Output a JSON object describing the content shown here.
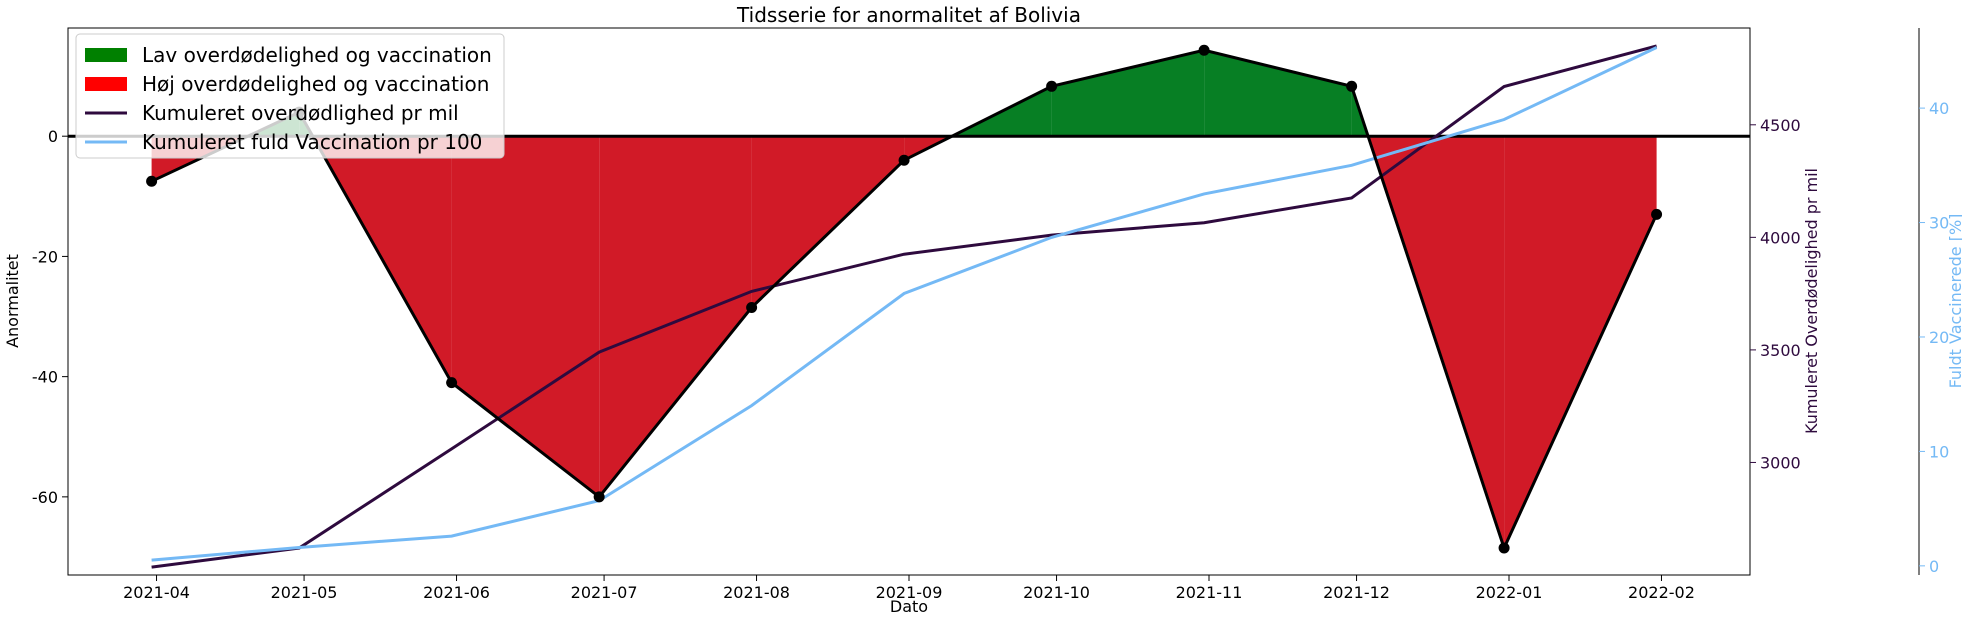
{
  "chart_data": {
    "type": "line",
    "title": "Tidsserie for anormalitet af Bolivia",
    "xlabel": "Dato",
    "ylabel": "Anormalitet",
    "y2label": "Kumuleret Overdødelighed pr mil",
    "y3label": "Fuldt Vaccinerede [%]",
    "x_ticks": [
      "2021-04",
      "2021-05",
      "2021-06",
      "2021-07",
      "2021-08",
      "2021-09",
      "2021-10",
      "2021-11",
      "2021-12",
      "2022-01",
      "2022-02"
    ],
    "ylim": [
      -73,
      18
    ],
    "y_ticks": [
      -60,
      -40,
      -20,
      0
    ],
    "y2lim": [
      2500,
      4930
    ],
    "y2_ticks": [
      3000,
      3500,
      4000,
      4500
    ],
    "y3lim": [
      -0.8,
      47
    ],
    "y3_ticks": [
      0,
      10,
      20,
      30,
      40
    ],
    "colors": {
      "low_fill": "#077f24",
      "high_fill": "#d11a27",
      "anomaly_line": "#000000",
      "excess_line": "#2e0a3e",
      "vaccination_line": "#74b9f5",
      "legend_low": "#008000",
      "legend_high": "#ff0000"
    },
    "legend": {
      "placement": "top-left",
      "items": [
        {
          "label": "Lav overdødelighed og vaccination",
          "kind": "patch",
          "color_key": "legend_low"
        },
        {
          "label": "Høj overdødelighed og vaccination",
          "kind": "patch",
          "color_key": "legend_high"
        },
        {
          "label": "Kumuleret overdødlighed pr mil",
          "kind": "line",
          "color_key": "excess_line"
        },
        {
          "label": "Kumuleret fuld Vaccination pr 100",
          "kind": "line",
          "color_key": "vaccination_line"
        }
      ]
    },
    "series": [
      {
        "name": "Anormalitet",
        "axis": "left",
        "values": [
          {
            "x": "2021-03-31",
            "y": -7.5
          },
          {
            "x": "2021-04-30",
            "y": 4.0
          },
          {
            "x": "2021-05-31",
            "y": -41.0
          },
          {
            "x": "2021-06-30",
            "y": -60.0
          },
          {
            "x": "2021-07-31",
            "y": -28.5
          },
          {
            "x": "2021-08-31",
            "y": -4.0
          },
          {
            "x": "2021-09-30",
            "y": 8.3
          },
          {
            "x": "2021-10-31",
            "y": 14.3
          },
          {
            "x": "2021-11-30",
            "y": 8.3
          },
          {
            "x": "2021-12-31",
            "y": -68.5
          },
          {
            "x": "2022-01-31",
            "y": -13.0
          }
        ]
      },
      {
        "name": "Kumuleret overdødlighed pr mil",
        "axis": "right",
        "values": [
          {
            "x": "2021-03-31",
            "y": 2535
          },
          {
            "x": "2021-04-30",
            "y": 2620
          },
          {
            "x": "2021-05-31",
            "y": 3060
          },
          {
            "x": "2021-06-30",
            "y": 3490
          },
          {
            "x": "2021-07-31",
            "y": 3760
          },
          {
            "x": "2021-08-31",
            "y": 3925
          },
          {
            "x": "2021-09-30",
            "y": 4010
          },
          {
            "x": "2021-10-31",
            "y": 4065
          },
          {
            "x": "2021-11-30",
            "y": 4175
          },
          {
            "x": "2021-12-31",
            "y": 4670
          },
          {
            "x": "2022-01-31",
            "y": 4850
          }
        ]
      },
      {
        "name": "Kumuleret fuld Vaccination pr 100",
        "axis": "right2",
        "values": [
          {
            "x": "2021-03-31",
            "y": 0.5
          },
          {
            "x": "2021-04-30",
            "y": 1.6
          },
          {
            "x": "2021-05-31",
            "y": 2.6
          },
          {
            "x": "2021-06-30",
            "y": 5.7
          },
          {
            "x": "2021-07-31",
            "y": 14.0
          },
          {
            "x": "2021-08-31",
            "y": 23.8
          },
          {
            "x": "2021-09-30",
            "y": 28.7
          },
          {
            "x": "2021-10-31",
            "y": 32.5
          },
          {
            "x": "2021-11-30",
            "y": 35.0
          },
          {
            "x": "2021-12-31",
            "y": 39.0
          },
          {
            "x": "2022-01-31",
            "y": 45.3
          }
        ]
      }
    ],
    "zero_line": true,
    "grid": false
  }
}
